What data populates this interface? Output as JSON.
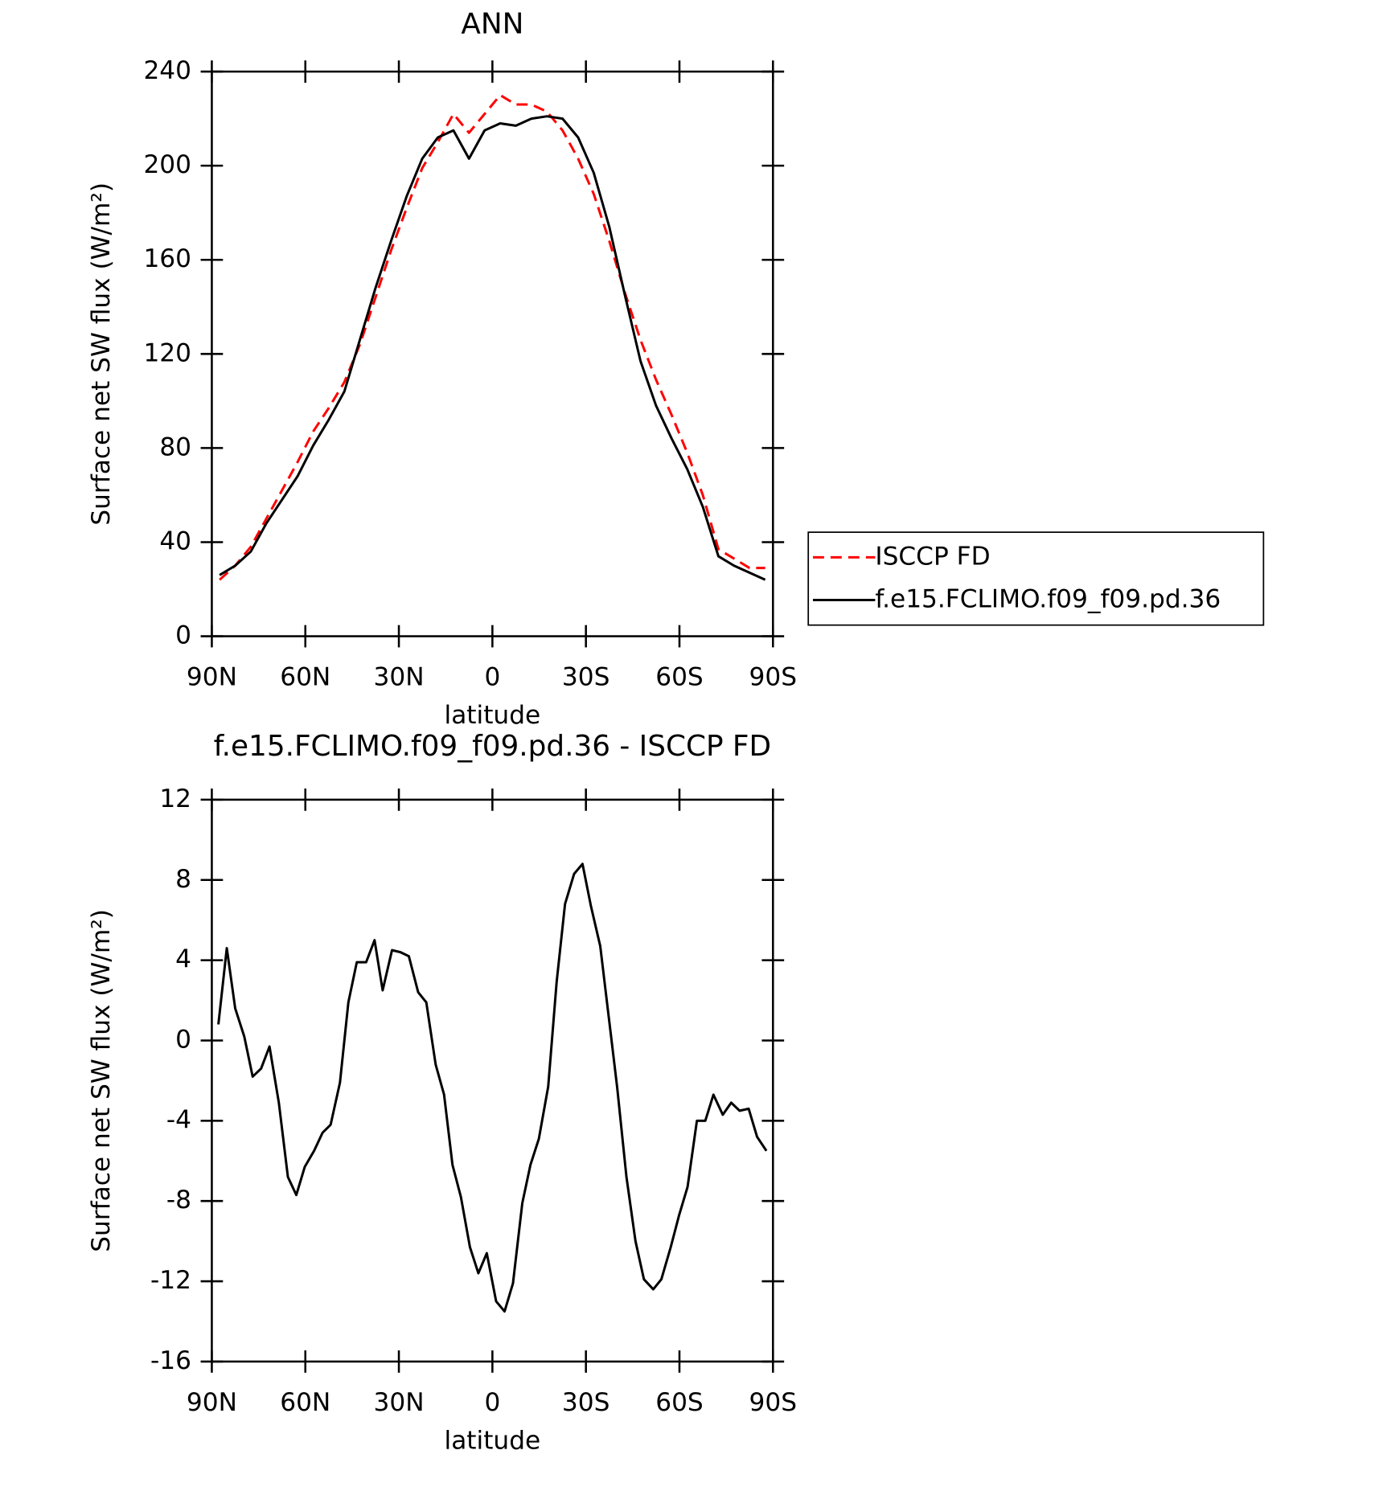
{
  "chart_data": [
    {
      "type": "line",
      "title": "ANN",
      "xlabel": "latitude",
      "ylabel": "Surface net SW flux (W/m²)",
      "x": [
        87.5,
        82.5,
        77.5,
        72.5,
        67.5,
        62.5,
        57.5,
        52.5,
        47.5,
        42.5,
        37.5,
        32.5,
        27.5,
        22.5,
        17.5,
        12.5,
        7.5,
        2.5,
        -2.5,
        -7.5,
        -12.5,
        -17.5,
        -22.5,
        -27.5,
        -32.5,
        -37.5,
        -42.5,
        -47.5,
        -52.5,
        -57.5,
        -62.5,
        -67.5,
        -72.5,
        -77.5,
        -82.5,
        -87.5
      ],
      "series": [
        {
          "name": "ISCCP FD",
          "color": "#ff0000",
          "dash": "dashed",
          "values": [
            24,
            30,
            38,
            50,
            62,
            74,
            87,
            97,
            108,
            124,
            144,
            164,
            182,
            199,
            210,
            222,
            214,
            222,
            230,
            226,
            226,
            223,
            215,
            203,
            188,
            168,
            146,
            126,
            109,
            94,
            78,
            60,
            37,
            33,
            29,
            29
          ]
        },
        {
          "name": "f.e15.FCLIMO.f09_f09.pd.36",
          "color": "#000000",
          "dash": "solid",
          "values": [
            26,
            30,
            36,
            48,
            58,
            68,
            81,
            92,
            104,
            126,
            148,
            168,
            187,
            203,
            212,
            215,
            203,
            215,
            218,
            217,
            220,
            221,
            220,
            212,
            197,
            174,
            145,
            117,
            98,
            84,
            71,
            55,
            34,
            30,
            27,
            24
          ]
        }
      ],
      "xlim": [
        90,
        -90
      ],
      "xticks": [
        {
          "value": 90,
          "label": "90N"
        },
        {
          "value": 60,
          "label": "60N"
        },
        {
          "value": 30,
          "label": "30N"
        },
        0,
        {
          "value": -30,
          "label": "30S"
        },
        {
          "value": -60,
          "label": "60S"
        },
        {
          "value": -90,
          "label": "90S"
        }
      ],
      "ylim": [
        0,
        240
      ],
      "yticks": [
        0,
        40,
        80,
        120,
        160,
        200,
        240
      ],
      "legend": "outside-right",
      "grid": false
    },
    {
      "type": "line",
      "title": "f.e15.FCLIMO.f09_f09.pd.36 - ISCCP FD",
      "xlabel": "latitude",
      "ylabel": "Surface net SW flux (W/m²)",
      "x": [
        87.9,
        85.2,
        82.5,
        79.6,
        76.9,
        74.2,
        71.5,
        68.5,
        65.6,
        62.9,
        60.2,
        57.2,
        54.5,
        51.9,
        48.9,
        46.2,
        43.5,
        40.5,
        37.8,
        35.2,
        32.2,
        29.5,
        26.8,
        23.8,
        21.2,
        18.2,
        15.5,
        12.8,
        10.1,
        7.2,
        4.5,
        1.8,
        -1.2,
        -3.9,
        -6.6,
        -9.6,
        -12.2,
        -14.9,
        -17.9,
        -20.6,
        -23.3,
        -26.2,
        -28.9,
        -31.6,
        -34.6,
        -37.3,
        -40.0,
        -43.0,
        -45.9,
        -48.6,
        -51.6,
        -54.2,
        -57.2,
        -59.9,
        -62.6,
        -65.6,
        -68.3,
        -70.9,
        -73.9,
        -76.6,
        -79.3,
        -82.2,
        -84.9,
        -87.9
      ],
      "series": [
        {
          "color": "#000000",
          "dash": "solid",
          "values": [
            0.8,
            4.6,
            1.6,
            0.2,
            -1.8,
            -1.4,
            -0.3,
            -3.1,
            -6.8,
            -7.7,
            -6.3,
            -5.5,
            -4.6,
            -4.2,
            -2.1,
            1.9,
            3.9,
            3.9,
            5.0,
            2.5,
            4.5,
            4.4,
            4.2,
            2.4,
            1.9,
            -1.2,
            -2.7,
            -6.2,
            -7.8,
            -10.3,
            -11.6,
            -10.6,
            -13.0,
            -13.5,
            -12.1,
            -8.1,
            -6.2,
            -4.9,
            -2.3,
            2.9,
            6.8,
            8.3,
            8.8,
            6.7,
            4.7,
            1.2,
            -2.3,
            -6.8,
            -10.0,
            -11.9,
            -12.4,
            -11.9,
            -10.3,
            -8.7,
            -7.3,
            -4.0,
            -4.0,
            -2.7,
            -3.7,
            -3.1,
            -3.5,
            -3.4,
            -4.8,
            -5.5
          ]
        }
      ],
      "xlim": [
        90,
        -90
      ],
      "xticks": [
        {
          "value": 90,
          "label": "90N"
        },
        {
          "value": 60,
          "label": "60N"
        },
        {
          "value": 30,
          "label": "30N"
        },
        0,
        {
          "value": -30,
          "label": "30S"
        },
        {
          "value": -60,
          "label": "60S"
        },
        {
          "value": -90,
          "label": "90S"
        }
      ],
      "ylim": [
        -16,
        12
      ],
      "yticks": [
        -16,
        -12,
        -8,
        -4,
        0,
        4,
        8,
        12
      ],
      "grid": false
    }
  ]
}
